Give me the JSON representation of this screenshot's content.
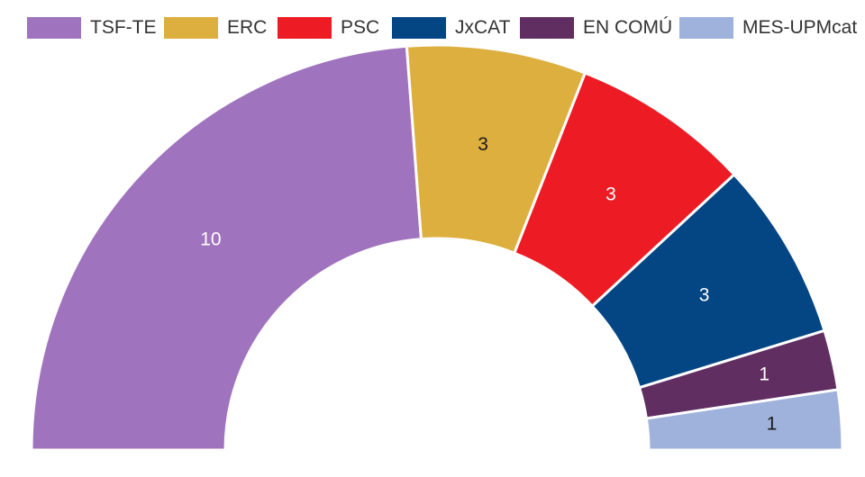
{
  "chart_data": {
    "type": "pie",
    "subtype": "half-donut",
    "title": "",
    "legend_position": "top",
    "categories": [
      "TSF-TE",
      "ERC",
      "PSC",
      "JxCAT",
      "EN COMÚ",
      "MES-UPMcat"
    ],
    "values": [
      10,
      3,
      3,
      3,
      1,
      1
    ],
    "series": [
      {
        "name": "TSF-TE",
        "value": 10,
        "color": "#a073be",
        "label_color": "#ffffff"
      },
      {
        "name": "ERC",
        "value": 3,
        "color": "#dcaf3f",
        "label_color": "#1a1a1a"
      },
      {
        "name": "PSC",
        "value": 3,
        "color": "#ed1c24",
        "label_color": "#ffffff"
      },
      {
        "name": "JxCAT",
        "value": 3,
        "color": "#044584",
        "label_color": "#ffffff"
      },
      {
        "name": "EN COMÚ",
        "value": 1,
        "color": "#612e62",
        "label_color": "#ffffff"
      },
      {
        "name": "MES-UPMcat",
        "value": 1,
        "color": "#9eb2db",
        "label_color": "#1a1a1a"
      }
    ]
  }
}
